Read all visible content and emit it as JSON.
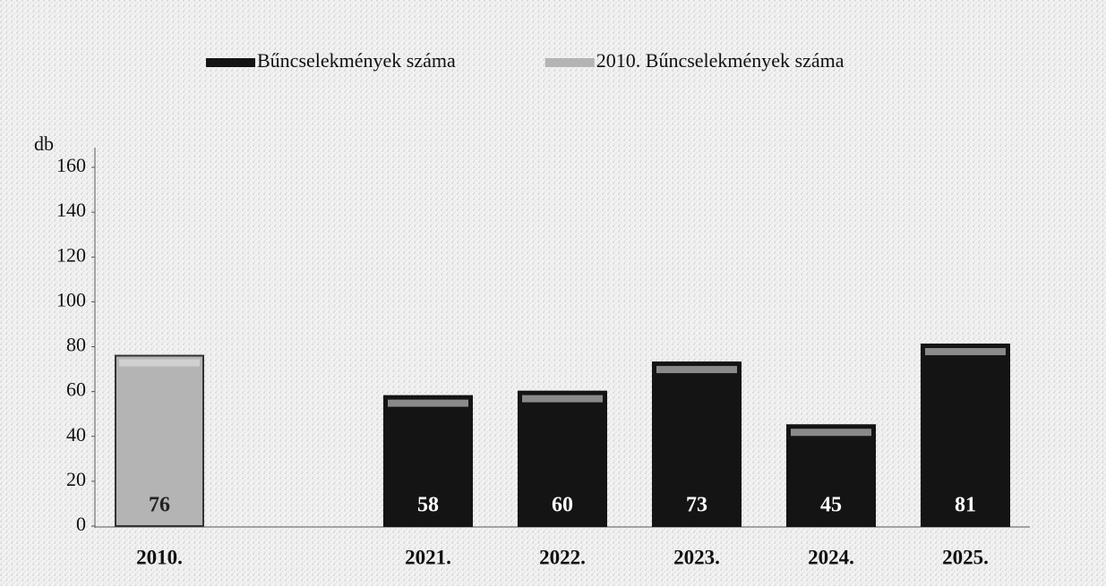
{
  "chart_data": {
    "type": "bar",
    "y_label": "db",
    "categories": [
      "2010.",
      null,
      "2021.",
      "2022.",
      "2023.",
      "2024.",
      "2025."
    ],
    "series": [
      {
        "name": "Bűncselekmények száma",
        "color": "#141414",
        "values": [
          null,
          null,
          58,
          60,
          73,
          45,
          81
        ]
      },
      {
        "name": "2010. Bűncselekmények száma",
        "color": "#b4b4b4",
        "values": [
          76,
          null,
          null,
          null,
          null,
          null,
          null
        ]
      }
    ],
    "ylim": [
      0,
      170
    ],
    "yticks": [
      0,
      20,
      40,
      60,
      80,
      100,
      120,
      140,
      160
    ],
    "grid": false
  }
}
